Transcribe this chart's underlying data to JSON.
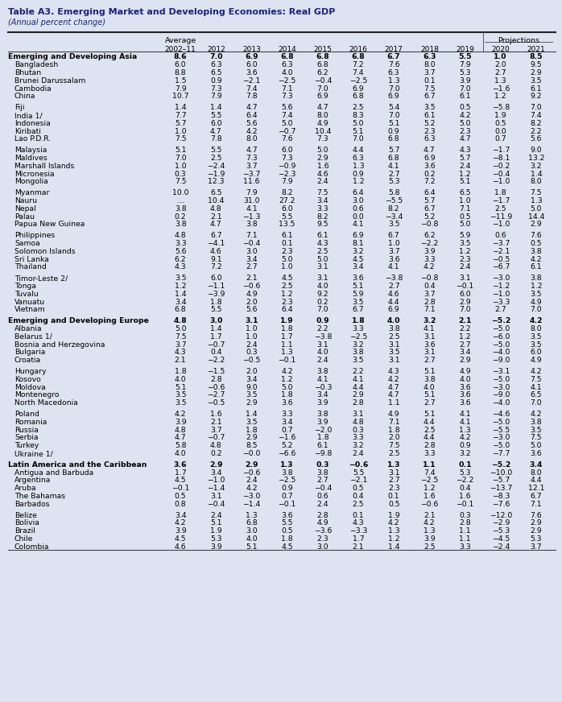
{
  "title": "Table A3. Emerging Market and Developing Economies: Real GDP",
  "subtitle": "(Annual percent change)",
  "years": [
    "2002–11",
    "2012",
    "2013",
    "2014",
    "2015",
    "2016",
    "2017",
    "2018",
    "2019",
    "2020",
    "2021"
  ],
  "rows": [
    {
      "name": "Emerging and Developing Asia",
      "vals": [
        "8.6",
        "7.0",
        "6.9",
        "6.8",
        "6.8",
        "6.8",
        "6.7",
        "6.3",
        "5.5",
        "1.0",
        "8.5"
      ],
      "bold": true,
      "gap_before": false
    },
    {
      "name": "Bangladesh",
      "vals": [
        "6.0",
        "6.3",
        "6.0",
        "6.3",
        "6.8",
        "7.2",
        "7.6",
        "8.0",
        "7.9",
        "2.0",
        "9.5"
      ],
      "bold": false,
      "gap_before": false
    },
    {
      "name": "Bhutan",
      "vals": [
        "8.8",
        "6.5",
        "3.6",
        "4.0",
        "6.2",
        "7.4",
        "6.3",
        "3.7",
        "5.3",
        "2.7",
        "2.9"
      ],
      "bold": false,
      "gap_before": false
    },
    {
      "name": "Brunei Darussalam",
      "vals": [
        "1.5",
        "0.9",
        "−2.1",
        "−2.5",
        "−0.4",
        "−2.5",
        "1.3",
        "0.1",
        "3.9",
        "1.3",
        "3.5"
      ],
      "bold": false,
      "gap_before": false
    },
    {
      "name": "Cambodia",
      "vals": [
        "7.9",
        "7.3",
        "7.4",
        "7.1",
        "7.0",
        "6.9",
        "7.0",
        "7.5",
        "7.0",
        "−1.6",
        "6.1"
      ],
      "bold": false,
      "gap_before": false
    },
    {
      "name": "China",
      "vals": [
        "10.7",
        "7.9",
        "7.8",
        "7.3",
        "6.9",
        "6.8",
        "6.9",
        "6.7",
        "6.1",
        "1.2",
        "9.2"
      ],
      "bold": false,
      "gap_before": false
    },
    {
      "name": "Fiji",
      "vals": [
        "1.4",
        "1.4",
        "4.7",
        "5.6",
        "4.7",
        "2.5",
        "5.4",
        "3.5",
        "0.5",
        "−5.8",
        "7.0"
      ],
      "bold": false,
      "gap_before": true
    },
    {
      "name": "India 1/",
      "vals": [
        "7.7",
        "5.5",
        "6.4",
        "7.4",
        "8.0",
        "8.3",
        "7.0",
        "6.1",
        "4.2",
        "1.9",
        "7.4"
      ],
      "bold": false,
      "gap_before": false
    },
    {
      "name": "Indonesia",
      "vals": [
        "5.7",
        "6.0",
        "5.6",
        "5.0",
        "4.9",
        "5.0",
        "5.1",
        "5.2",
        "5.0",
        "0.5",
        "8.2"
      ],
      "bold": false,
      "gap_before": false
    },
    {
      "name": "Kiribati",
      "vals": [
        "1.0",
        "4.7",
        "4.2",
        "−0.7",
        "10.4",
        "5.1",
        "0.9",
        "2.3",
        "2.3",
        "0.0",
        "2.2"
      ],
      "bold": false,
      "gap_before": false
    },
    {
      "name": "Lao P.D.R.",
      "vals": [
        "7.5",
        "7.8",
        "8.0",
        "7.6",
        "7.3",
        "7.0",
        "6.8",
        "6.3",
        "4.7",
        "0.7",
        "5.6"
      ],
      "bold": false,
      "gap_before": false
    },
    {
      "name": "Malaysia",
      "vals": [
        "5.1",
        "5.5",
        "4.7",
        "6.0",
        "5.0",
        "4.4",
        "5.7",
        "4.7",
        "4.3",
        "−1.7",
        "9.0"
      ],
      "bold": false,
      "gap_before": true
    },
    {
      "name": "Maldives",
      "vals": [
        "7.0",
        "2.5",
        "7.3",
        "7.3",
        "2.9",
        "6.3",
        "6.8",
        "6.9",
        "5.7",
        "−8.1",
        "13.2"
      ],
      "bold": false,
      "gap_before": false
    },
    {
      "name": "Marshall Islands",
      "vals": [
        "1.0",
        "−2.4",
        "3.7",
        "−0.9",
        "1.6",
        "1.3",
        "4.1",
        "3.6",
        "2.4",
        "−0.2",
        "3.2"
      ],
      "bold": false,
      "gap_before": false
    },
    {
      "name": "Micronesia",
      "vals": [
        "0.3",
        "−1.9",
        "−3.7",
        "−2.3",
        "4.6",
        "0.9",
        "2.7",
        "0.2",
        "1.2",
        "−0.4",
        "1.4"
      ],
      "bold": false,
      "gap_before": false
    },
    {
      "name": "Mongolia",
      "vals": [
        "7.5",
        "12.3",
        "11.6",
        "7.9",
        "2.4",
        "1.2",
        "5.3",
        "7.2",
        "5.1",
        "−1.0",
        "8.0"
      ],
      "bold": false,
      "gap_before": false
    },
    {
      "name": "Myanmar",
      "vals": [
        "10.0",
        "6.5",
        "7.9",
        "8.2",
        "7.5",
        "6.4",
        "5.8",
        "6.4",
        "6.5",
        "1.8",
        "7.5"
      ],
      "bold": false,
      "gap_before": true
    },
    {
      "name": "Nauru",
      "vals": [
        "…",
        "10.4",
        "31.0",
        "27.2",
        "3.4",
        "3.0",
        "−5.5",
        "5.7",
        "1.0",
        "−1.7",
        "1.3"
      ],
      "bold": false,
      "gap_before": false
    },
    {
      "name": "Nepal",
      "vals": [
        "3.8",
        "4.8",
        "4.1",
        "6.0",
        "3.3",
        "0.6",
        "8.2",
        "6.7",
        "7.1",
        "2.5",
        "5.0"
      ],
      "bold": false,
      "gap_before": false
    },
    {
      "name": "Palau",
      "vals": [
        "0.2",
        "2.1",
        "−1.3",
        "5.5",
        "8.2",
        "0.0",
        "−3.4",
        "5.2",
        "0.5",
        "−11.9",
        "14.4"
      ],
      "bold": false,
      "gap_before": false
    },
    {
      "name": "Papua New Guinea",
      "vals": [
        "3.8",
        "4.7",
        "3.8",
        "13.5",
        "9.5",
        "4.1",
        "3.5",
        "−0.8",
        "5.0",
        "−1.0",
        "2.9"
      ],
      "bold": false,
      "gap_before": false
    },
    {
      "name": "Philippines",
      "vals": [
        "4.8",
        "6.7",
        "7.1",
        "6.1",
        "6.1",
        "6.9",
        "6.7",
        "6.2",
        "5.9",
        "0.6",
        "7.6"
      ],
      "bold": false,
      "gap_before": true
    },
    {
      "name": "Samoa",
      "vals": [
        "3.3",
        "−4.1",
        "−0.4",
        "0.1",
        "4.3",
        "8.1",
        "1.0",
        "−2.2",
        "3.5",
        "−3.7",
        "0.5"
      ],
      "bold": false,
      "gap_before": false
    },
    {
      "name": "Solomon Islands",
      "vals": [
        "5.6",
        "4.6",
        "3.0",
        "2.3",
        "2.5",
        "3.2",
        "3.7",
        "3.9",
        "1.2",
        "−2.1",
        "3.8"
      ],
      "bold": false,
      "gap_before": false
    },
    {
      "name": "Sri Lanka",
      "vals": [
        "6.2",
        "9.1",
        "3.4",
        "5.0",
        "5.0",
        "4.5",
        "3.6",
        "3.3",
        "2.3",
        "−0.5",
        "4.2"
      ],
      "bold": false,
      "gap_before": false
    },
    {
      "name": "Thailand",
      "vals": [
        "4.3",
        "7.2",
        "2.7",
        "1.0",
        "3.1",
        "3.4",
        "4.1",
        "4.2",
        "2.4",
        "−6.7",
        "6.1"
      ],
      "bold": false,
      "gap_before": false
    },
    {
      "name": "Timor-Leste 2/",
      "vals": [
        "3.5",
        "6.0",
        "2.1",
        "4.5",
        "3.1",
        "3.6",
        "−3.8",
        "−0.8",
        "3.1",
        "−3.0",
        "3.8"
      ],
      "bold": false,
      "gap_before": true
    },
    {
      "name": "Tonga",
      "vals": [
        "1.2",
        "−1.1",
        "−0.6",
        "2.5",
        "4.0",
        "5.1",
        "2.7",
        "0.4",
        "−0.1",
        "−1.2",
        "1.2"
      ],
      "bold": false,
      "gap_before": false
    },
    {
      "name": "Tuvalu",
      "vals": [
        "1.4",
        "−3.9",
        "4.9",
        "1.2",
        "9.2",
        "5.9",
        "4.6",
        "3.7",
        "6.0",
        "−1.0",
        "3.5"
      ],
      "bold": false,
      "gap_before": false
    },
    {
      "name": "Vanuatu",
      "vals": [
        "3.4",
        "1.8",
        "2.0",
        "2.3",
        "0.2",
        "3.5",
        "4.4",
        "2.8",
        "2.9",
        "−3.3",
        "4.9"
      ],
      "bold": false,
      "gap_before": false
    },
    {
      "name": "Vietnam",
      "vals": [
        "6.8",
        "5.5",
        "5.6",
        "6.4",
        "7.0",
        "6.7",
        "6.9",
        "7.1",
        "7.0",
        "2.7",
        "7.0"
      ],
      "bold": false,
      "gap_before": false
    },
    {
      "name": "Emerging and Developing Europe",
      "vals": [
        "4.8",
        "3.0",
        "3.1",
        "1.9",
        "0.9",
        "1.8",
        "4.0",
        "3.2",
        "2.1",
        "−5.2",
        "4.2"
      ],
      "bold": true,
      "gap_before": true
    },
    {
      "name": "Albania",
      "vals": [
        "5.0",
        "1.4",
        "1.0",
        "1.8",
        "2.2",
        "3.3",
        "3.8",
        "4.1",
        "2.2",
        "−5.0",
        "8.0"
      ],
      "bold": false,
      "gap_before": false
    },
    {
      "name": "Belarus 1/",
      "vals": [
        "7.5",
        "1.7",
        "1.0",
        "1.7",
        "−3.8",
        "−2.5",
        "2.5",
        "3.1",
        "1.2",
        "−6.0",
        "3.5"
      ],
      "bold": false,
      "gap_before": false
    },
    {
      "name": "Bosnia and Herzegovina",
      "vals": [
        "3.7",
        "−0.7",
        "2.4",
        "1.1",
        "3.1",
        "3.2",
        "3.1",
        "3.6",
        "2.7",
        "−5.0",
        "3.5"
      ],
      "bold": false,
      "gap_before": false
    },
    {
      "name": "Bulgaria",
      "vals": [
        "4.3",
        "0.4",
        "0.3",
        "1.3",
        "4.0",
        "3.8",
        "3.5",
        "3.1",
        "3.4",
        "−4.0",
        "6.0"
      ],
      "bold": false,
      "gap_before": false
    },
    {
      "name": "Croatia",
      "vals": [
        "2.1",
        "−2.2",
        "−0.5",
        "−0.1",
        "2.4",
        "3.5",
        "3.1",
        "2.7",
        "2.9",
        "−9.0",
        "4.9"
      ],
      "bold": false,
      "gap_before": false
    },
    {
      "name": "Hungary",
      "vals": [
        "1.8",
        "−1.5",
        "2.0",
        "4.2",
        "3.8",
        "2.2",
        "4.3",
        "5.1",
        "4.9",
        "−3.1",
        "4.2"
      ],
      "bold": false,
      "gap_before": true
    },
    {
      "name": "Kosovo",
      "vals": [
        "4.0",
        "2.8",
        "3.4",
        "1.2",
        "4.1",
        "4.1",
        "4.2",
        "3.8",
        "4.0",
        "−5.0",
        "7.5"
      ],
      "bold": false,
      "gap_before": false
    },
    {
      "name": "Moldova",
      "vals": [
        "5.1",
        "−0.6",
        "9.0",
        "5.0",
        "−0.3",
        "4.4",
        "4.7",
        "4.0",
        "3.6",
        "−3.0",
        "4.1"
      ],
      "bold": false,
      "gap_before": false
    },
    {
      "name": "Montenegro",
      "vals": [
        "3.5",
        "−2.7",
        "3.5",
        "1.8",
        "3.4",
        "2.9",
        "4.7",
        "5.1",
        "3.6",
        "−9.0",
        "6.5"
      ],
      "bold": false,
      "gap_before": false
    },
    {
      "name": "North Macedonia",
      "vals": [
        "3.5",
        "−0.5",
        "2.9",
        "3.6",
        "3.9",
        "2.8",
        "1.1",
        "2.7",
        "3.6",
        "−4.0",
        "7.0"
      ],
      "bold": false,
      "gap_before": false
    },
    {
      "name": "Poland",
      "vals": [
        "4.2",
        "1.6",
        "1.4",
        "3.3",
        "3.8",
        "3.1",
        "4.9",
        "5.1",
        "4.1",
        "−4.6",
        "4.2"
      ],
      "bold": false,
      "gap_before": true
    },
    {
      "name": "Romania",
      "vals": [
        "3.9",
        "2.1",
        "3.5",
        "3.4",
        "3.9",
        "4.8",
        "7.1",
        "4.4",
        "4.1",
        "−5.0",
        "3.8"
      ],
      "bold": false,
      "gap_before": false
    },
    {
      "name": "Russia",
      "vals": [
        "4.8",
        "3.7",
        "1.8",
        "0.7",
        "−2.0",
        "0.3",
        "1.8",
        "2.5",
        "1.3",
        "−5.5",
        "3.5"
      ],
      "bold": false,
      "gap_before": false
    },
    {
      "name": "Serbia",
      "vals": [
        "4.7",
        "−0.7",
        "2.9",
        "−1.6",
        "1.8",
        "3.3",
        "2.0",
        "4.4",
        "4.2",
        "−3.0",
        "7.5"
      ],
      "bold": false,
      "gap_before": false
    },
    {
      "name": "Turkey",
      "vals": [
        "5.8",
        "4.8",
        "8.5",
        "5.2",
        "6.1",
        "3.2",
        "7.5",
        "2.8",
        "0.9",
        "−5.0",
        "5.0"
      ],
      "bold": false,
      "gap_before": false
    },
    {
      "name": "Ukraine 1/",
      "vals": [
        "4.0",
        "0.2",
        "−0.0",
        "−6.6",
        "−9.8",
        "2.4",
        "2.5",
        "3.3",
        "3.2",
        "−7.7",
        "3.6"
      ],
      "bold": false,
      "gap_before": false
    },
    {
      "name": "Latin America and the Caribbean",
      "vals": [
        "3.6",
        "2.9",
        "2.9",
        "1.3",
        "0.3",
        "−0.6",
        "1.3",
        "1.1",
        "0.1",
        "−5.2",
        "3.4"
      ],
      "bold": true,
      "gap_before": true
    },
    {
      "name": "Antigua and Barbuda",
      "vals": [
        "1.7",
        "3.4",
        "−0.6",
        "3.8",
        "3.8",
        "5.5",
        "3.1",
        "7.4",
        "5.3",
        "−10.0",
        "8.0"
      ],
      "bold": false,
      "gap_before": false
    },
    {
      "name": "Argentina",
      "vals": [
        "4.5",
        "−1.0",
        "2.4",
        "−2.5",
        "2.7",
        "−2.1",
        "2.7",
        "−2.5",
        "−2.2",
        "−5.7",
        "4.4"
      ],
      "bold": false,
      "gap_before": false
    },
    {
      "name": "Aruba",
      "vals": [
        "−0.1",
        "−1.4",
        "4.2",
        "0.9",
        "−0.4",
        "0.5",
        "2.3",
        "1.2",
        "0.4",
        "−13.7",
        "12.1"
      ],
      "bold": false,
      "gap_before": false
    },
    {
      "name": "The Bahamas",
      "vals": [
        "0.5",
        "3.1",
        "−3.0",
        "0.7",
        "0.6",
        "0.4",
        "0.1",
        "1.6",
        "1.6",
        "−8.3",
        "6.7"
      ],
      "bold": false,
      "gap_before": false
    },
    {
      "name": "Barbados",
      "vals": [
        "0.8",
        "−0.4",
        "−1.4",
        "−0.1",
        "2.4",
        "2.5",
        "0.5",
        "−0.6",
        "−0.1",
        "−7.6",
        "7.1"
      ],
      "bold": false,
      "gap_before": false
    },
    {
      "name": "Belize",
      "vals": [
        "3.4",
        "2.4",
        "1.3",
        "3.6",
        "2.8",
        "0.1",
        "1.9",
        "2.1",
        "0.3",
        "−12.0",
        "7.6"
      ],
      "bold": false,
      "gap_before": true
    },
    {
      "name": "Bolivia",
      "vals": [
        "4.2",
        "5.1",
        "6.8",
        "5.5",
        "4.9",
        "4.3",
        "4.2",
        "4.2",
        "2.8",
        "−2.9",
        "2.9"
      ],
      "bold": false,
      "gap_before": false
    },
    {
      "name": "Brazil",
      "vals": [
        "3.9",
        "1.9",
        "3.0",
        "0.5",
        "−3.6",
        "−3.3",
        "1.3",
        "1.3",
        "1.1",
        "−5.3",
        "2.9"
      ],
      "bold": false,
      "gap_before": false
    },
    {
      "name": "Chile",
      "vals": [
        "4.5",
        "5.3",
        "4.0",
        "1.8",
        "2.3",
        "1.7",
        "1.2",
        "3.9",
        "1.1",
        "−4.5",
        "5.3"
      ],
      "bold": false,
      "gap_before": false
    },
    {
      "name": "Colombia",
      "vals": [
        "4.6",
        "3.9",
        "5.1",
        "4.5",
        "3.0",
        "2.1",
        "1.4",
        "2.5",
        "3.3",
        "−2.4",
        "3.7"
      ],
      "bold": false,
      "gap_before": false
    }
  ],
  "bg_color": "#dde3f0",
  "title_color": "#1a237e",
  "proj_line_color": "#555555"
}
